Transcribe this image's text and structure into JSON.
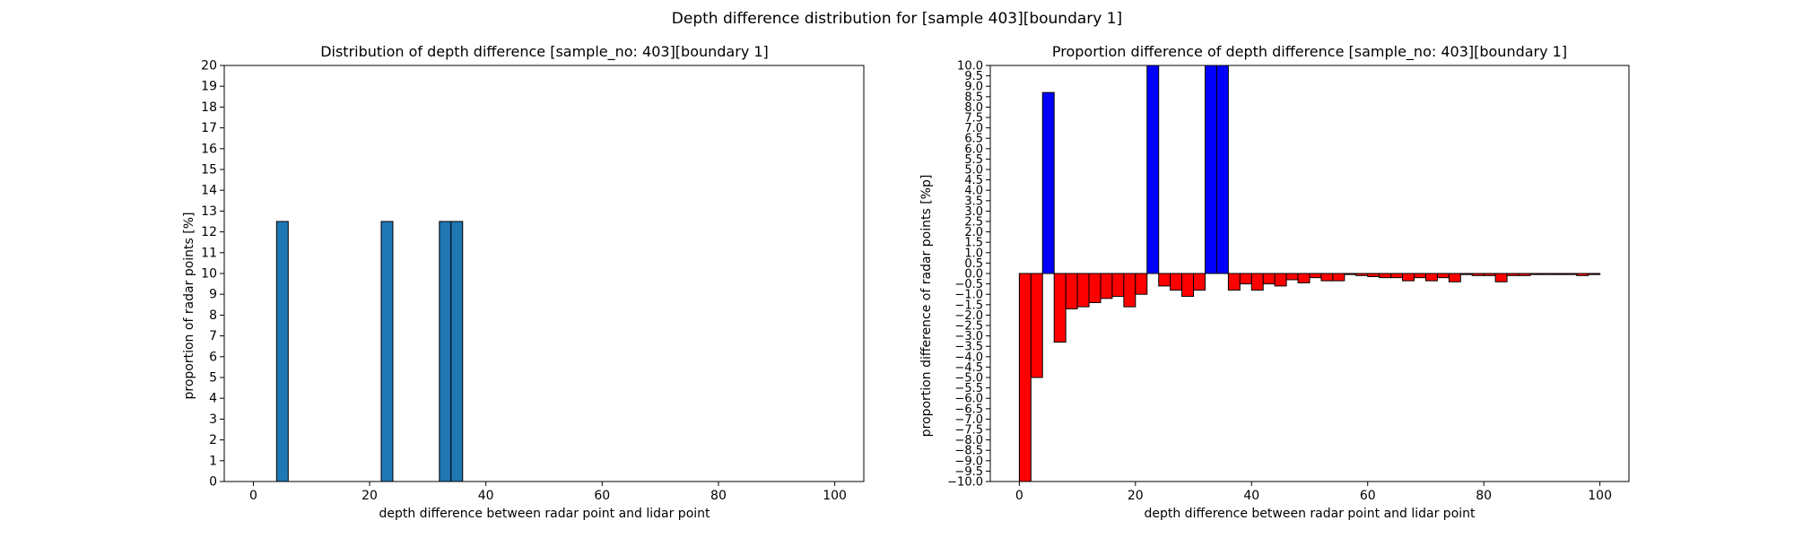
{
  "figure": {
    "suptitle": "Depth difference distribution for [sample 403][boundary 1]"
  },
  "chart_data": [
    {
      "type": "bar",
      "title": "Distribution of depth difference [sample_no: 403][boundary 1]",
      "xlabel": "depth difference between radar point and lidar point",
      "ylabel": "proportion of radar points [%]",
      "xlim": [
        -5,
        105
      ],
      "ylim": [
        0,
        20
      ],
      "xticks": [
        "0",
        "20",
        "40",
        "60",
        "80",
        "100"
      ],
      "yticks": [
        "0",
        "1",
        "2",
        "3",
        "4",
        "5",
        "6",
        "7",
        "8",
        "9",
        "10",
        "11",
        "12",
        "13",
        "14",
        "15",
        "16",
        "17",
        "18",
        "19",
        "20"
      ],
      "bar_width": 2,
      "bars": [
        {
          "x": 4,
          "value": 12.5
        },
        {
          "x": 22,
          "value": 12.5
        },
        {
          "x": 32,
          "value": 12.5
        },
        {
          "x": 34,
          "value": 12.5
        }
      ],
      "color": "#1f77b4",
      "grid": false
    },
    {
      "type": "bar",
      "title": "Proportion difference of depth difference [sample_no: 403][boundary 1]",
      "xlabel": "depth difference between radar point and lidar point",
      "ylabel": "proportion difference of radar points [%p]",
      "xlim": [
        -5,
        105
      ],
      "ylim": [
        -10,
        10
      ],
      "xticks": [
        "0",
        "20",
        "40",
        "60",
        "80",
        "100"
      ],
      "yticks": [
        "−10.0",
        "−9.5",
        "−9.0",
        "−8.5",
        "−8.0",
        "−7.5",
        "−7.0",
        "−6.5",
        "−6.0",
        "−5.5",
        "−5.0",
        "−4.5",
        "−4.0",
        "−3.5",
        "−3.0",
        "−2.5",
        "−2.0",
        "−1.5",
        "−1.0",
        "−0.5",
        "0.0",
        "0.5",
        "1.0",
        "1.5",
        "2.0",
        "2.5",
        "3.0",
        "3.5",
        "4.0",
        "4.5",
        "5.0",
        "5.5",
        "6.0",
        "6.5",
        "7.0",
        "7.5",
        "8.0",
        "8.5",
        "9.0",
        "9.5",
        "10.0"
      ],
      "bar_width": 2,
      "positive_color": "#0000ff",
      "negative_color": "#ff0000",
      "bars": [
        {
          "x": 0,
          "value": -10.0
        },
        {
          "x": 2,
          "value": -5.0
        },
        {
          "x": 4,
          "value": 8.7
        },
        {
          "x": 6,
          "value": -3.3
        },
        {
          "x": 8,
          "value": -1.7
        },
        {
          "x": 10,
          "value": -1.6
        },
        {
          "x": 12,
          "value": -1.4
        },
        {
          "x": 14,
          "value": -1.2
        },
        {
          "x": 16,
          "value": -1.1
        },
        {
          "x": 18,
          "value": -1.6
        },
        {
          "x": 20,
          "value": -1.0
        },
        {
          "x": 22,
          "value": 10.0
        },
        {
          "x": 24,
          "value": -0.6
        },
        {
          "x": 26,
          "value": -0.8
        },
        {
          "x": 28,
          "value": -1.1
        },
        {
          "x": 30,
          "value": -0.8
        },
        {
          "x": 32,
          "value": 10.0
        },
        {
          "x": 34,
          "value": 10.0
        },
        {
          "x": 36,
          "value": -0.8
        },
        {
          "x": 38,
          "value": -0.5
        },
        {
          "x": 40,
          "value": -0.8
        },
        {
          "x": 42,
          "value": -0.5
        },
        {
          "x": 44,
          "value": -0.6
        },
        {
          "x": 46,
          "value": -0.3
        },
        {
          "x": 48,
          "value": -0.45
        },
        {
          "x": 50,
          "value": -0.2
        },
        {
          "x": 52,
          "value": -0.35
        },
        {
          "x": 54,
          "value": -0.35
        },
        {
          "x": 56,
          "value": -0.05
        },
        {
          "x": 58,
          "value": -0.1
        },
        {
          "x": 60,
          "value": -0.15
        },
        {
          "x": 62,
          "value": -0.2
        },
        {
          "x": 64,
          "value": -0.2
        },
        {
          "x": 66,
          "value": -0.35
        },
        {
          "x": 68,
          "value": -0.2
        },
        {
          "x": 70,
          "value": -0.35
        },
        {
          "x": 72,
          "value": -0.2
        },
        {
          "x": 74,
          "value": -0.4
        },
        {
          "x": 76,
          "value": -0.05
        },
        {
          "x": 78,
          "value": -0.1
        },
        {
          "x": 80,
          "value": -0.1
        },
        {
          "x": 82,
          "value": -0.4
        },
        {
          "x": 84,
          "value": -0.1
        },
        {
          "x": 86,
          "value": -0.1
        },
        {
          "x": 88,
          "value": -0.05
        },
        {
          "x": 90,
          "value": -0.05
        },
        {
          "x": 92,
          "value": -0.05
        },
        {
          "x": 94,
          "value": -0.05
        },
        {
          "x": 96,
          "value": -0.1
        },
        {
          "x": 98,
          "value": -0.05
        }
      ],
      "grid": false
    }
  ]
}
